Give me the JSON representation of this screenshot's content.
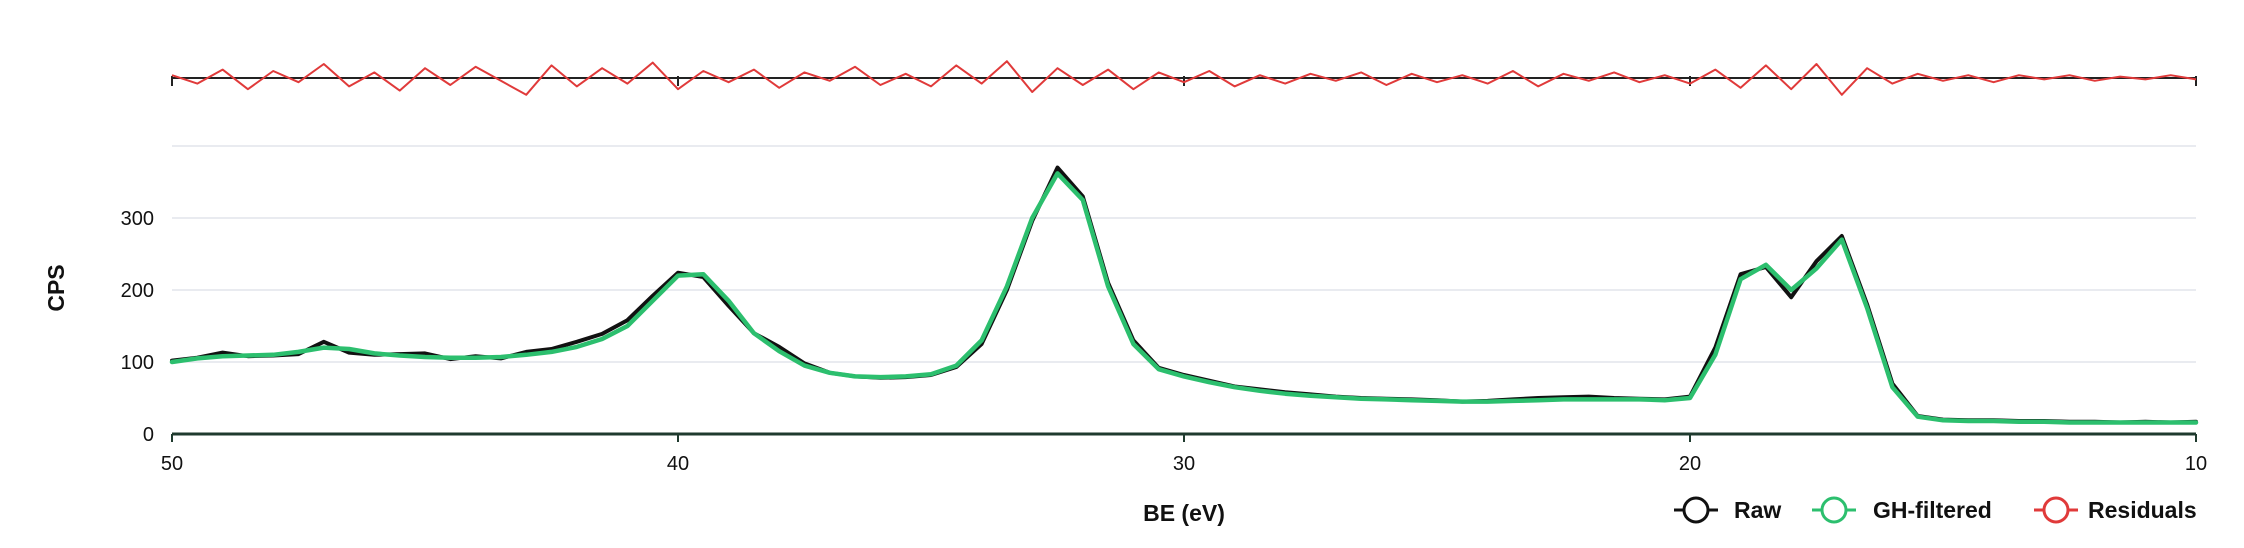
{
  "chart_data": {
    "type": "line",
    "xlabel": "BE (eV)",
    "ylabel": "CPS",
    "xlim": [
      50,
      10
    ],
    "x_reversed": true,
    "ylim": [
      0,
      400
    ],
    "xticks": [
      50,
      40,
      30,
      20,
      10
    ],
    "yticks": [
      0,
      100,
      200,
      300
    ],
    "grid": true,
    "legend_position": "bottom-right",
    "colors": {
      "raw": "#111111",
      "filtered": "#2cbf6e",
      "residuals": "#e03a3a",
      "grid": "#dcdfe8"
    },
    "series": [
      {
        "name": "Raw",
        "key": "raw",
        "x": [
          50,
          49.5,
          49,
          48.5,
          48,
          47.5,
          47,
          46.5,
          46,
          45.5,
          45,
          44.5,
          44,
          43.5,
          43,
          42.5,
          42,
          41.5,
          41,
          40.5,
          40,
          39.5,
          39,
          38.5,
          38,
          37.5,
          37,
          36.5,
          36,
          35.5,
          35,
          34.5,
          34,
          33.5,
          33,
          32.5,
          32,
          31.5,
          31,
          30.5,
          30,
          29.5,
          29,
          28.5,
          28,
          27.5,
          27,
          26.5,
          26,
          25.5,
          25,
          24.5,
          24,
          23.5,
          23,
          22.5,
          22,
          21.5,
          21,
          20.5,
          20,
          19.5,
          19,
          18.5,
          18,
          17.5,
          17,
          16.5,
          16,
          15.5,
          15,
          14.5,
          14,
          13.5,
          13,
          12.5,
          12,
          11.5,
          11,
          10.5,
          10
        ],
        "y": [
          102,
          106,
          113,
          108,
          109,
          111,
          128,
          113,
          110,
          111,
          112,
          104,
          108,
          105,
          114,
          118,
          128,
          139,
          158,
          192,
          224,
          218,
          178,
          140,
          121,
          98,
          85,
          80,
          78,
          79,
          82,
          93,
          125,
          200,
          296,
          370,
          330,
          210,
          130,
          92,
          82,
          74,
          66,
          62,
          58,
          55,
          52,
          50,
          49,
          48,
          47,
          45,
          46,
          48,
          50,
          51,
          52,
          50,
          49,
          48,
          52,
          120,
          222,
          232,
          190,
          240,
          275,
          180,
          70,
          25,
          20,
          19,
          19,
          18,
          18,
          17,
          17,
          16,
          17,
          16,
          17
        ]
      },
      {
        "name": "GH-filtered",
        "key": "filtered",
        "x": [
          50,
          49.5,
          49,
          48.5,
          48,
          47.5,
          47,
          46.5,
          46,
          45.5,
          45,
          44.5,
          44,
          43.5,
          43,
          42.5,
          42,
          41.5,
          41,
          40.5,
          40,
          39.5,
          39,
          38.5,
          38,
          37.5,
          37,
          36.5,
          36,
          35.5,
          35,
          34.5,
          34,
          33.5,
          33,
          32.5,
          32,
          31.5,
          31,
          30.5,
          30,
          29.5,
          29,
          28.5,
          28,
          27.5,
          27,
          26.5,
          26,
          25.5,
          25,
          24.5,
          24,
          23.5,
          23,
          22.5,
          22,
          21.5,
          21,
          20.5,
          20,
          19.5,
          19,
          18.5,
          18,
          17.5,
          17,
          16.5,
          16,
          15.5,
          15,
          14.5,
          14,
          13.5,
          13,
          12.5,
          12,
          11.5,
          11,
          10.5,
          10
        ],
        "y": [
          100,
          105,
          108,
          109,
          110,
          114,
          120,
          118,
          112,
          109,
          107,
          106,
          106,
          107,
          110,
          114,
          121,
          132,
          150,
          185,
          220,
          222,
          185,
          140,
          115,
          95,
          85,
          80,
          79,
          80,
          83,
          95,
          130,
          205,
          300,
          362,
          325,
          205,
          125,
          90,
          80,
          72,
          65,
          60,
          56,
          53,
          51,
          49,
          48,
          47,
          46,
          45,
          45,
          46,
          47,
          48,
          48,
          48,
          48,
          47,
          50,
          110,
          215,
          235,
          200,
          230,
          270,
          175,
          65,
          24,
          19,
          18,
          18,
          17,
          17,
          16,
          16,
          16,
          16,
          16,
          16
        ]
      },
      {
        "name": "Residuals",
        "key": "residuals",
        "x": [
          50,
          49.5,
          49,
          48.5,
          48,
          47.5,
          47,
          46.5,
          46,
          45.5,
          45,
          44.5,
          44,
          43.5,
          43,
          42.5,
          42,
          41.5,
          41,
          40.5,
          40,
          39.5,
          39,
          38.5,
          38,
          37.5,
          37,
          36.5,
          36,
          35.5,
          35,
          34.5,
          34,
          33.5,
          33,
          32.5,
          32,
          31.5,
          31,
          30.5,
          30,
          29.5,
          29,
          28.5,
          28,
          27.5,
          27,
          26.5,
          26,
          25.5,
          25,
          24.5,
          24,
          23.5,
          23,
          22.5,
          22,
          21.5,
          21,
          20.5,
          20,
          19.5,
          19,
          18.5,
          18,
          17.5,
          17,
          16.5,
          16,
          15.5,
          15,
          14.5,
          14,
          13.5,
          13,
          12.5,
          12,
          11.5,
          11,
          10.5,
          10
        ],
        "y": [
          2,
          -4,
          6,
          -8,
          5,
          -3,
          10,
          -6,
          4,
          -9,
          7,
          -5,
          8,
          -2,
          -12,
          9,
          -6,
          7,
          -4,
          11,
          -8,
          5,
          -3,
          6,
          -7,
          4,
          -2,
          8,
          -5,
          3,
          -6,
          9,
          -4,
          12,
          -10,
          7,
          -5,
          6,
          -8,
          4,
          -3,
          5,
          -6,
          2,
          -4,
          3,
          -2,
          4,
          -5,
          3,
          -3,
          2,
          -4,
          5,
          -6,
          3,
          -2,
          4,
          -3,
          2,
          -4,
          6,
          -7,
          9,
          -8,
          10,
          -12,
          7,
          -4,
          3,
          -2,
          2,
          -3,
          2,
          -1,
          2,
          -2,
          1,
          -1,
          2,
          -1
        ]
      }
    ]
  }
}
